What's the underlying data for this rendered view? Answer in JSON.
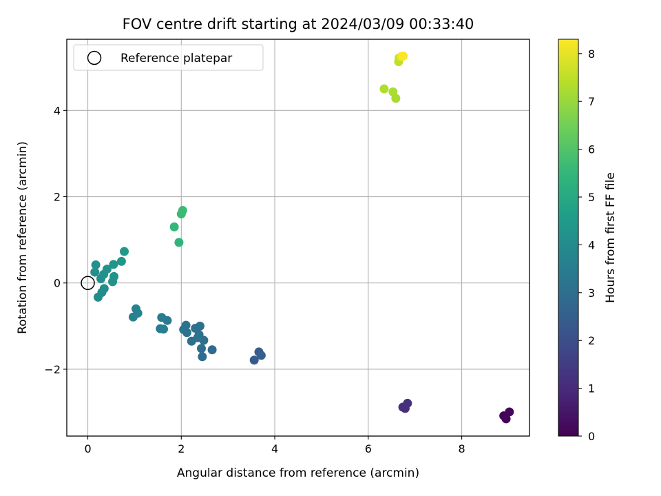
{
  "chart_data": {
    "type": "scatter",
    "title": "FOV centre drift starting at 2024/03/09 00:33:40",
    "xlabel": "Angular distance from reference (arcmin)",
    "ylabel": "Rotation from reference (arcmin)",
    "xlim": [
      -0.45,
      9.45
    ],
    "ylim": [
      -3.55,
      5.65
    ],
    "xticks": [
      0,
      2,
      4,
      6,
      8
    ],
    "xticklabels": [
      "0",
      "2",
      "4",
      "6",
      "8"
    ],
    "yticks": [
      -2,
      0,
      2,
      4
    ],
    "yticklabels": [
      "−2",
      "0",
      "2",
      "4"
    ],
    "grid": true,
    "legend": {
      "position": "upper-left",
      "entries": [
        "Reference platepar"
      ]
    },
    "reference_point": {
      "x": 0,
      "y": 0,
      "label": "Reference platepar"
    },
    "colorbar": {
      "label": "Hours from first FF file",
      "colormap": "viridis",
      "range": [
        0,
        8.3
      ],
      "ticks": [
        0,
        1,
        2,
        3,
        4,
        5,
        6,
        7,
        8
      ]
    },
    "points": [
      {
        "x": 8.95,
        "y": -3.15,
        "t": 0.05
      },
      {
        "x": 8.9,
        "y": -3.08,
        "t": 0.1
      },
      {
        "x": 9.02,
        "y": -2.99,
        "t": 0.15
      },
      {
        "x": 6.79,
        "y": -2.91,
        "t": 1.1
      },
      {
        "x": 6.74,
        "y": -2.88,
        "t": 1.15
      },
      {
        "x": 6.84,
        "y": -2.79,
        "t": 1.2
      },
      {
        "x": 3.56,
        "y": -1.79,
        "t": 2.4
      },
      {
        "x": 3.66,
        "y": -1.6,
        "t": 2.45
      },
      {
        "x": 3.71,
        "y": -1.68,
        "t": 2.5
      },
      {
        "x": 2.66,
        "y": -1.55,
        "t": 2.85
      },
      {
        "x": 2.45,
        "y": -1.71,
        "t": 2.9
      },
      {
        "x": 2.43,
        "y": -1.52,
        "t": 2.95
      },
      {
        "x": 2.48,
        "y": -1.33,
        "t": 3.0
      },
      {
        "x": 2.22,
        "y": -1.35,
        "t": 3.0
      },
      {
        "x": 2.38,
        "y": -1.2,
        "t": 3.05
      },
      {
        "x": 2.3,
        "y": -1.05,
        "t": 3.1
      },
      {
        "x": 2.4,
        "y": -1.0,
        "t": 3.1
      },
      {
        "x": 2.12,
        "y": -1.15,
        "t": 3.15
      },
      {
        "x": 2.05,
        "y": -1.08,
        "t": 3.2
      },
      {
        "x": 2.1,
        "y": -0.98,
        "t": 3.2
      },
      {
        "x": 2.35,
        "y": -1.27,
        "t": 3.15
      },
      {
        "x": 1.7,
        "y": -0.87,
        "t": 3.4
      },
      {
        "x": 1.58,
        "y": -0.8,
        "t": 3.45
      },
      {
        "x": 1.55,
        "y": -1.06,
        "t": 3.45
      },
      {
        "x": 1.62,
        "y": -1.07,
        "t": 3.5
      },
      {
        "x": 0.97,
        "y": -0.79,
        "t": 3.65
      },
      {
        "x": 1.03,
        "y": -0.6,
        "t": 3.7
      },
      {
        "x": 1.07,
        "y": -0.7,
        "t": 3.7
      },
      {
        "x": 0.22,
        "y": -0.33,
        "t": 4.0
      },
      {
        "x": 0.35,
        "y": -0.13,
        "t": 4.05
      },
      {
        "x": 0.3,
        "y": -0.22,
        "t": 4.05
      },
      {
        "x": 0.28,
        "y": 0.1,
        "t": 4.1
      },
      {
        "x": 0.15,
        "y": 0.25,
        "t": 4.1
      },
      {
        "x": 0.17,
        "y": 0.42,
        "t": 4.15
      },
      {
        "x": 0.34,
        "y": 0.2,
        "t": 4.15
      },
      {
        "x": 0.41,
        "y": 0.32,
        "t": 4.2
      },
      {
        "x": 0.53,
        "y": 0.03,
        "t": 4.2
      },
      {
        "x": 0.56,
        "y": 0.15,
        "t": 4.25
      },
      {
        "x": 0.55,
        "y": 0.43,
        "t": 4.3
      },
      {
        "x": 0.72,
        "y": 0.5,
        "t": 4.35
      },
      {
        "x": 0.78,
        "y": 0.73,
        "t": 4.4
      },
      {
        "x": 1.95,
        "y": 0.94,
        "t": 5.4
      },
      {
        "x": 1.85,
        "y": 1.3,
        "t": 5.5
      },
      {
        "x": 2.0,
        "y": 1.6,
        "t": 5.6
      },
      {
        "x": 2.03,
        "y": 1.68,
        "t": 5.65
      },
      {
        "x": 6.59,
        "y": 4.28,
        "t": 7.2
      },
      {
        "x": 6.53,
        "y": 4.43,
        "t": 7.25
      },
      {
        "x": 6.34,
        "y": 4.5,
        "t": 7.3
      },
      {
        "x": 6.65,
        "y": 5.13,
        "t": 7.5
      },
      {
        "x": 6.66,
        "y": 5.22,
        "t": 7.55
      },
      {
        "x": 6.71,
        "y": 5.25,
        "t": 8.2
      },
      {
        "x": 6.75,
        "y": 5.26,
        "t": 8.25
      }
    ]
  }
}
